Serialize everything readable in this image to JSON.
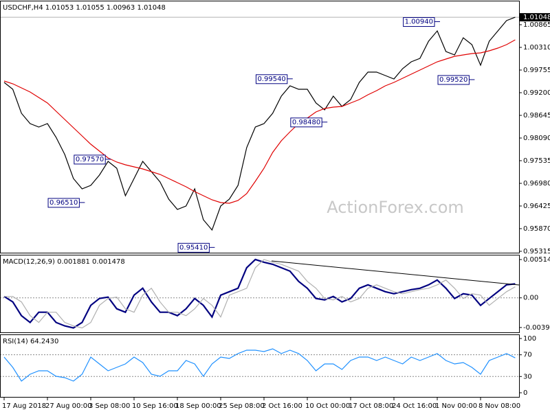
{
  "chart_data": [
    {
      "type": "line",
      "title": "USDCHF,H4  1.01053 1.01055 1.00963 1.01048",
      "watermark": "ActionForex.com",
      "categories": [
        "17 Aug 2018",
        null,
        null,
        null,
        null,
        "27 Aug 00:00",
        null,
        null,
        null,
        null,
        "3 Sep 08:00",
        null,
        null,
        null,
        null,
        "10 Sep 16:00",
        null,
        null,
        null,
        null,
        "18 Sep 00:00",
        null,
        null,
        null,
        null,
        "25 Sep 08:00",
        null,
        null,
        null,
        null,
        "2 Oct 16:00",
        null,
        null,
        null,
        null,
        "10 Oct 00:00",
        null,
        null,
        null,
        null,
        "17 Oct 08:00",
        null,
        null,
        null,
        null,
        "24 Oct 16:00",
        null,
        null,
        null,
        null,
        "1 Nov 00:00",
        null,
        null,
        null,
        null,
        "8 Nov 08:00",
        null,
        null,
        null,
        null
      ],
      "series": [
        {
          "color": "#000000",
          "values": [
            0.99452,
            0.99284,
            0.98695,
            0.98443,
            0.98359,
            0.98443,
            0.98107,
            0.97686,
            0.97097,
            0.96845,
            0.96929,
            0.97182,
            0.97518,
            0.9735,
            0.96677,
            0.97097,
            0.97518,
            0.97266,
            0.97013,
            0.96593,
            0.96341,
            0.96425,
            0.96845,
            0.96088,
            0.95836,
            0.96425,
            0.96593,
            0.96929,
            0.97854,
            0.98359,
            0.98443,
            0.98695,
            0.99116,
            0.99368,
            0.99284,
            0.99284,
            0.98948,
            0.98779,
            0.99116,
            0.98864,
            0.99032,
            0.99452,
            0.99705,
            0.99705,
            0.9962,
            0.99536,
            0.99789,
            0.99957,
            1.00041,
            1.00461,
            1.00714,
            1.00209,
            1.00125,
            1.00546,
            1.00377,
            0.99873,
            1.00461,
            1.00714,
            1.00966,
            1.01048
          ]
        },
        {
          "color": "#e00000",
          "values": [
            0.99486,
            0.99419,
            0.99318,
            0.99217,
            0.99082,
            0.98948,
            0.98746,
            0.98544,
            0.98342,
            0.9814,
            0.97938,
            0.9777,
            0.97602,
            0.97501,
            0.97434,
            0.97383,
            0.97333,
            0.97266,
            0.97198,
            0.97097,
            0.96997,
            0.96896,
            0.96778,
            0.96677,
            0.96576,
            0.96509,
            0.96492,
            0.96559,
            0.96727,
            0.9703,
            0.9735,
            0.97737,
            0.98023,
            0.98241,
            0.98443,
            0.98578,
            0.98729,
            0.98813,
            0.98847,
            0.98864,
            0.98948,
            0.99032,
            0.99149,
            0.9925,
            0.99368,
            0.99452,
            0.99553,
            0.99654,
            0.99755,
            0.99856,
            0.99957,
            1.00024,
            1.00091,
            1.00125,
            1.00159,
            1.00175,
            1.00226,
            1.00293,
            1.00377,
            1.00495
          ]
        }
      ],
      "ylim": [
        0.95281,
        1.01437
      ],
      "yticks": [
        {
          "value": 1.00865,
          "label": "1.00865"
        },
        {
          "value": 1.0031,
          "label": "1.00310"
        },
        {
          "value": 0.99755,
          "label": "0.99755"
        },
        {
          "value": 0.992,
          "label": "0.99200"
        },
        {
          "value": 0.98645,
          "label": "0.98645"
        },
        {
          "value": 0.9809,
          "label": "0.98090"
        },
        {
          "value": 0.97535,
          "label": "0.97535"
        },
        {
          "value": 0.9698,
          "label": "0.96980"
        },
        {
          "value": 0.96425,
          "label": "0.96425"
        },
        {
          "value": 0.9587,
          "label": "0.95870"
        },
        {
          "value": 0.95315,
          "label": "0.95315"
        }
      ],
      "last": {
        "value": 1.01048,
        "label": "1.01048"
      },
      "annotations": [
        {
          "index": 9,
          "value": 0.9651,
          "label": "0.96510"
        },
        {
          "index": 12,
          "value": 0.9757,
          "label": "0.97570"
        },
        {
          "index": 24,
          "value": 0.9541,
          "label": "0.95410"
        },
        {
          "index": 33,
          "value": 0.9954,
          "label": "0.99540"
        },
        {
          "index": 37,
          "value": 0.9848,
          "label": "0.98480"
        },
        {
          "index": 50,
          "value": 1.0094,
          "label": "1.00940"
        },
        {
          "index": 54,
          "value": 0.9952,
          "label": "0.99520"
        }
      ]
    },
    {
      "type": "line",
      "title": "MACD(12,26,9) 0.001881 0.001478",
      "series": [
        {
          "color": "#000080",
          "values": [
            0.000184,
            -0.000552,
            -0.002392,
            -0.003312,
            -0.001932,
            -0.001932,
            -0.003312,
            -0.003772,
            -0.004048,
            -0.003312,
            -0.001012,
            -9.2e-05,
            9.2e-05,
            -0.001472,
            -0.001932,
            0.000368,
            0.001288,
            -0.000552,
            -0.001932,
            -0.001932,
            -0.002392,
            -0.001472,
            -9.2e-05,
            -0.001012,
            -0.002576,
            0.000368,
            0.000828,
            0.001288,
            0.004048,
            0.005152,
            0.004784,
            0.004508,
            0.004048,
            0.003588,
            0.002208,
            0.001288,
            -9.2e-05,
            -0.000276,
            0.000184,
            -0.000552,
            -9.2e-05,
            0.001288,
            0.001748,
            0.001288,
            0.000828,
            0.000552,
            0.000828,
            0.001104,
            0.001288,
            0.001748,
            0.002392,
            0.001288,
            -9.2e-05,
            0.000552,
            0.000368,
            -0.001012,
            -9.2e-05,
            0.000828,
            0.001748,
            0.001881
          ]
        },
        {
          "color": "#b0b0b0",
          "values": [
            0.000184,
            0.000184,
            -0.000552,
            -0.002392,
            -0.003312,
            -0.001932,
            -0.001932,
            -0.003312,
            -0.003772,
            -0.004048,
            -0.003312,
            -0.001012,
            -9.2e-05,
            9.2e-05,
            -0.001472,
            -0.001932,
            0.000368,
            0.001288,
            -0.000552,
            -0.001932,
            -0.001932,
            -0.002392,
            -0.001472,
            -9.2e-05,
            -0.001012,
            -0.002576,
            0.000368,
            0.000828,
            0.001288,
            0.004048,
            0.005152,
            0.004784,
            0.004508,
            0.004048,
            0.003588,
            0.002208,
            0.001288,
            -9.2e-05,
            -0.000276,
            0.000184,
            -0.000552,
            -9.2e-05,
            0.001288,
            0.001748,
            0.001288,
            0.000828,
            0.000552,
            0.000828,
            0.001104,
            0.001288,
            0.001748,
            0.002392,
            0.001288,
            -9.2e-05,
            0.000552,
            0.000368,
            -0.001012,
            -9.2e-05,
            0.000828,
            0.001478
          ]
        }
      ],
      "ylim": [
        -0.00464,
        0.0057
      ],
      "yticks": [
        0.005145,
        {
          "value": 0,
          "label": "0.00"
        },
        -0.003989
      ],
      "levels": [
        0
      ]
    },
    {
      "type": "line",
      "title": "RSI(14) 64.2430",
      "series": [
        {
          "color": "#1e90ff",
          "values": [
            65.8,
            46.8,
            21.5,
            34.2,
            40.5,
            40.5,
            30.4,
            27.8,
            21.5,
            34.2,
            65.8,
            53.2,
            40.5,
            46.8,
            53.2,
            65.8,
            55.7,
            34.2,
            30.4,
            40.5,
            40.5,
            59.5,
            53.2,
            30.4,
            53.2,
            65.8,
            63.3,
            72.2,
            78.5,
            78.5,
            75.9,
            81.0,
            72.2,
            78.5,
            72.2,
            59.5,
            40.5,
            53.2,
            53.2,
            43.0,
            59.5,
            65.8,
            65.8,
            59.5,
            65.8,
            59.5,
            53.2,
            65.8,
            59.5,
            65.8,
            72.2,
            59.5,
            53.2,
            55.7,
            46.8,
            34.2,
            59.5,
            65.8,
            72.2,
            64.243
          ]
        }
      ],
      "ylim": [
        -7.6,
        106.3
      ],
      "yticks": [
        100,
        70,
        30,
        0
      ],
      "levels": [
        70,
        30
      ]
    }
  ]
}
